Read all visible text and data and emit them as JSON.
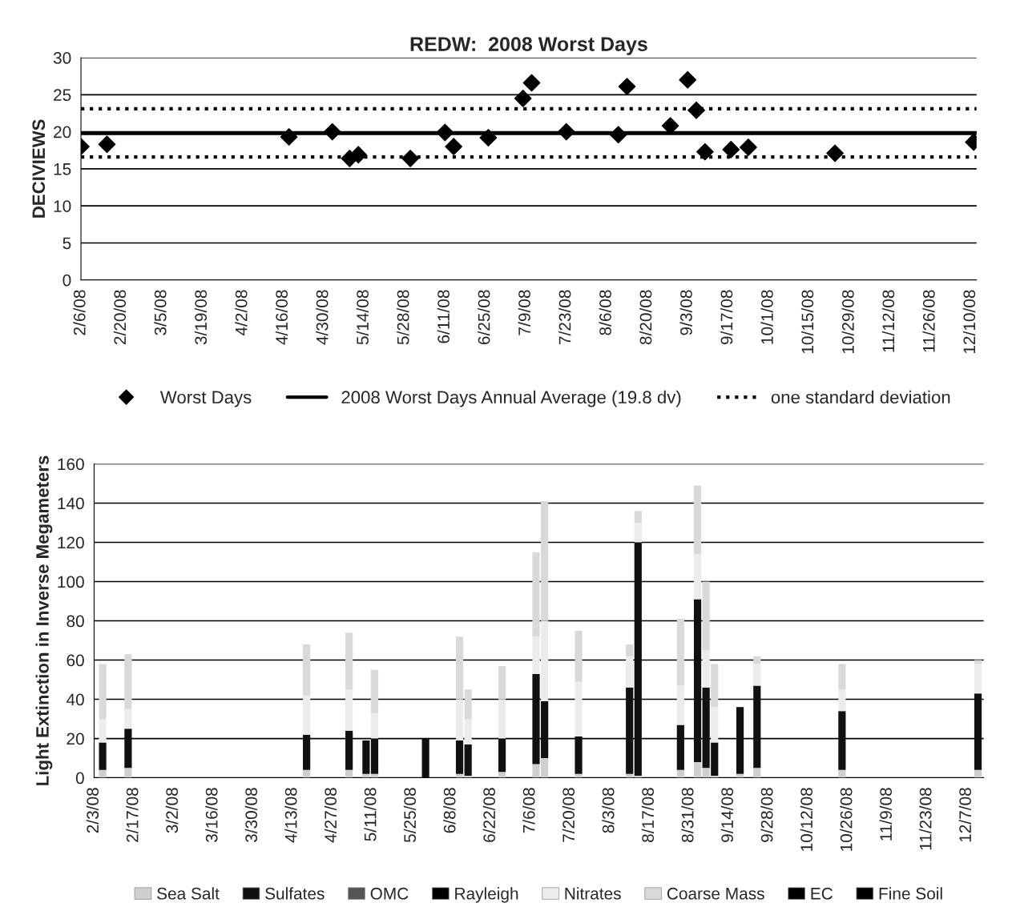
{
  "chart_data": [
    {
      "type": "scatter",
      "title": "REDW:  2008 Worst Days",
      "ylabel": "DECIVIEWS",
      "x": [
        "2008-02-06",
        "2008-02-15",
        "2008-04-18",
        "2008-05-03",
        "2008-05-09",
        "2008-05-12",
        "2008-05-30",
        "2008-06-11",
        "2008-06-14",
        "2008-06-26",
        "2008-07-08",
        "2008-07-11",
        "2008-07-23",
        "2008-08-10",
        "2008-08-13",
        "2008-08-28",
        "2008-09-03",
        "2008-09-06",
        "2008-09-09",
        "2008-09-18",
        "2008-09-24",
        "2008-10-24",
        "2008-12-11"
      ],
      "series": [
        {
          "name": "Worst Days",
          "color": "#000000",
          "values": [
            18.0,
            18.3,
            19.3,
            20.0,
            16.4,
            16.9,
            16.4,
            19.9,
            18.0,
            19.2,
            24.5,
            26.6,
            20.0,
            19.6,
            26.1,
            20.8,
            27.0,
            22.9,
            17.3,
            17.6,
            17.9,
            17.1,
            18.6
          ]
        }
      ],
      "marker": "diamond",
      "ref_lines": [
        {
          "axis": "y",
          "value": 19.8,
          "label": "2008 Worst Days Annual Average (19.8 dv)",
          "line_style": "solid",
          "color": "#000000"
        },
        {
          "axis": "y",
          "value": 23.1,
          "label": "one standard deviation",
          "line_style": "dotted",
          "color": "#000000"
        },
        {
          "axis": "y",
          "value": 16.6,
          "label": null,
          "line_style": "dotted",
          "color": "#000000"
        }
      ],
      "xlim": [
        "2008-02-06",
        "2008-12-12"
      ],
      "ylim": [
        0,
        30
      ],
      "yticks": [
        0,
        5,
        10,
        15,
        20,
        25,
        30
      ],
      "xticks": [
        {
          "value": "2008-02-06",
          "label": "2/6/08"
        },
        {
          "value": "2008-02-20",
          "label": "2/20/08"
        },
        {
          "value": "2008-03-05",
          "label": "3/5/08"
        },
        {
          "value": "2008-03-19",
          "label": "3/19/08"
        },
        {
          "value": "2008-04-02",
          "label": "4/2/08"
        },
        {
          "value": "2008-04-16",
          "label": "4/16/08"
        },
        {
          "value": "2008-04-30",
          "label": "4/30/08"
        },
        {
          "value": "2008-05-14",
          "label": "5/14/08"
        },
        {
          "value": "2008-05-28",
          "label": "5/28/08"
        },
        {
          "value": "2008-06-11",
          "label": "6/11/08"
        },
        {
          "value": "2008-06-25",
          "label": "6/25/08"
        },
        {
          "value": "2008-07-09",
          "label": "7/9/08"
        },
        {
          "value": "2008-07-23",
          "label": "7/23/08"
        },
        {
          "value": "2008-08-06",
          "label": "8/6/08"
        },
        {
          "value": "2008-08-20",
          "label": "8/20/08"
        },
        {
          "value": "2008-09-03",
          "label": "9/3/08"
        },
        {
          "value": "2008-09-17",
          "label": "9/17/08"
        },
        {
          "value": "2008-10-01",
          "label": "10/1/08"
        },
        {
          "value": "2008-10-15",
          "label": "10/15/08"
        },
        {
          "value": "2008-10-29",
          "label": "10/29/08"
        },
        {
          "value": "2008-11-12",
          "label": "11/12/08"
        },
        {
          "value": "2008-11-26",
          "label": "11/26/08"
        },
        {
          "value": "2008-12-10",
          "label": "12/10/08"
        }
      ],
      "grid": "y",
      "legend": "bottom"
    },
    {
      "type": "bar",
      "stacked": true,
      "ylabel": "Light Extinction in Inverse Megameters",
      "x": [
        "2008-02-06",
        "2008-02-15",
        "2008-04-18",
        "2008-05-03",
        "2008-05-09",
        "2008-05-12",
        "2008-05-30",
        "2008-06-11",
        "2008-06-14",
        "2008-06-26",
        "2008-07-08",
        "2008-07-11",
        "2008-07-23",
        "2008-08-10",
        "2008-08-13",
        "2008-08-28",
        "2008-09-03",
        "2008-09-06",
        "2008-09-09",
        "2008-09-18",
        "2008-09-24",
        "2008-10-24",
        "2008-12-11"
      ],
      "series": [
        {
          "name": "Sea Salt",
          "color": "#cfcfcf",
          "values": [
            4,
            5,
            4,
            4,
            2,
            2,
            0,
            2,
            1,
            3,
            7,
            10,
            2,
            2,
            1,
            4,
            8,
            5,
            1,
            2,
            5,
            4,
            4
          ]
        },
        {
          "name": "Sulfates",
          "color": "#111111",
          "values": [
            14,
            20,
            18,
            20,
            17,
            18,
            20,
            17,
            16,
            17,
            46,
            29,
            19,
            44,
            119,
            23,
            83,
            41,
            17,
            34,
            42,
            30,
            39
          ]
        },
        {
          "name": "OMC",
          "color": "#555555",
          "values": [
            null,
            null,
            null,
            null,
            null,
            null,
            null,
            null,
            null,
            null,
            null,
            null,
            null,
            null,
            null,
            null,
            null,
            null,
            null,
            null,
            null,
            null,
            null
          ]
        },
        {
          "name": "Rayleigh",
          "color": "#000000",
          "values": [
            null,
            null,
            null,
            null,
            null,
            null,
            null,
            null,
            null,
            null,
            null,
            null,
            null,
            null,
            null,
            null,
            null,
            null,
            null,
            null,
            null,
            null,
            null
          ]
        },
        {
          "name": "Nitrates",
          "color": "#ececec",
          "values": [
            12,
            10,
            20,
            21,
            null,
            13,
            null,
            21,
            13,
            20,
            19,
            41,
            28,
            16,
            10,
            20,
            23,
            19,
            18,
            null,
            11,
            11,
            15
          ]
        },
        {
          "name": "Coarse Mass",
          "color": "#d9d9d9",
          "values": [
            28,
            28,
            26,
            29,
            null,
            22,
            null,
            32,
            15,
            17,
            43,
            61,
            26,
            6,
            6,
            34,
            35,
            35,
            22,
            null,
            4,
            13,
            2
          ]
        },
        {
          "name": "EC",
          "color": "#000000",
          "values": [
            null,
            null,
            null,
            null,
            null,
            null,
            null,
            null,
            null,
            null,
            null,
            null,
            null,
            null,
            null,
            null,
            null,
            null,
            null,
            null,
            null,
            null,
            null
          ]
        },
        {
          "name": "Fine Soil",
          "color": "#000000",
          "values": [
            null,
            null,
            null,
            null,
            null,
            null,
            null,
            null,
            null,
            null,
            null,
            null,
            null,
            null,
            null,
            null,
            null,
            null,
            null,
            null,
            null,
            null,
            null
          ]
        }
      ],
      "xlim": [
        "2008-02-03",
        "2008-12-13"
      ],
      "ylim": [
        0,
        160
      ],
      "yticks": [
        0,
        20,
        40,
        60,
        80,
        100,
        120,
        140,
        160
      ],
      "xticks": [
        {
          "value": "2008-02-03",
          "label": "2/3/08"
        },
        {
          "value": "2008-02-17",
          "label": "2/17/08"
        },
        {
          "value": "2008-03-02",
          "label": "3/2/08"
        },
        {
          "value": "2008-03-16",
          "label": "3/16/08"
        },
        {
          "value": "2008-03-30",
          "label": "3/30/08"
        },
        {
          "value": "2008-04-13",
          "label": "4/13/08"
        },
        {
          "value": "2008-04-27",
          "label": "4/27/08"
        },
        {
          "value": "2008-05-11",
          "label": "5/11/08"
        },
        {
          "value": "2008-05-25",
          "label": "5/25/08"
        },
        {
          "value": "2008-06-08",
          "label": "6/8/08"
        },
        {
          "value": "2008-06-22",
          "label": "6/22/08"
        },
        {
          "value": "2008-07-06",
          "label": "7/6/08"
        },
        {
          "value": "2008-07-20",
          "label": "7/20/08"
        },
        {
          "value": "2008-08-03",
          "label": "8/3/08"
        },
        {
          "value": "2008-08-17",
          "label": "8/17/08"
        },
        {
          "value": "2008-08-31",
          "label": "8/31/08"
        },
        {
          "value": "2008-09-14",
          "label": "9/14/08"
        },
        {
          "value": "2008-09-28",
          "label": "9/28/08"
        },
        {
          "value": "2008-10-12",
          "label": "10/12/08"
        },
        {
          "value": "2008-10-26",
          "label": "10/26/08"
        },
        {
          "value": "2008-11-09",
          "label": "11/9/08"
        },
        {
          "value": "2008-11-23",
          "label": "11/23/08"
        },
        {
          "value": "2008-12-07",
          "label": "12/7/08"
        }
      ],
      "grid": "y",
      "legend": "bottom"
    }
  ]
}
